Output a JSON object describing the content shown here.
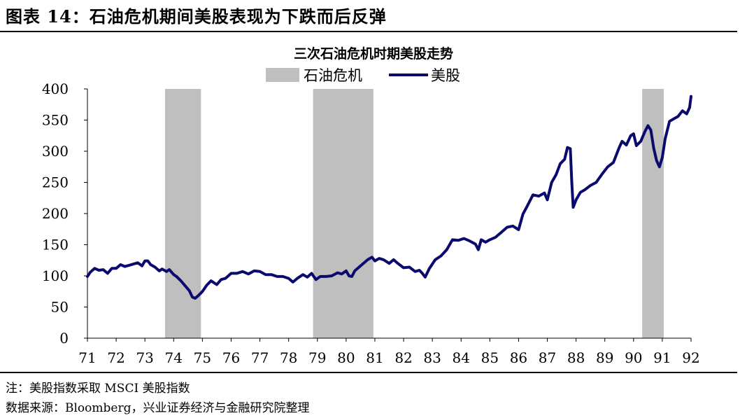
{
  "figure": {
    "title": "图表 14：石油危机期间美股表现为下跌而后反弹",
    "note": "注：美股指数采取 MSCI 美股指数",
    "source": "数据来源：Bloomberg，兴业证券经济与金融研究院整理"
  },
  "chart_data": {
    "type": "line",
    "title": "三次石油危机时期美股走势",
    "xlabel": "",
    "ylabel": "",
    "ylim": [
      0,
      400
    ],
    "yticks": [
      0,
      50,
      100,
      150,
      200,
      250,
      300,
      350,
      400
    ],
    "xlim": [
      1971,
      1992
    ],
    "xtick_labels": [
      "71",
      "72",
      "73",
      "74",
      "75",
      "76",
      "77",
      "78",
      "79",
      "80",
      "81",
      "82",
      "83",
      "84",
      "85",
      "86",
      "87",
      "88",
      "89",
      "90",
      "91",
      "92"
    ],
    "legend": {
      "position": "top",
      "band_label": "石油危机",
      "line_label": "美股"
    },
    "colors": {
      "line": "#0a0a6e",
      "band": "#bfbfbf"
    },
    "shaded_periods": [
      {
        "start": 1973.7,
        "end": 1974.95
      },
      {
        "start": 1978.85,
        "end": 1980.95
      },
      {
        "start": 1990.3,
        "end": 1991.05
      }
    ],
    "series": [
      {
        "name": "美股",
        "x": [
          1971.0,
          1971.1,
          1971.25,
          1971.4,
          1971.55,
          1971.7,
          1971.85,
          1972.0,
          1972.15,
          1972.3,
          1972.45,
          1972.6,
          1972.75,
          1972.9,
          1973.0,
          1973.1,
          1973.2,
          1973.35,
          1973.5,
          1973.6,
          1973.75,
          1973.85,
          1974.0,
          1974.1,
          1974.25,
          1974.4,
          1974.55,
          1974.65,
          1974.75,
          1974.85,
          1975.0,
          1975.15,
          1975.3,
          1975.5,
          1975.65,
          1975.8,
          1976.0,
          1976.2,
          1976.4,
          1976.6,
          1976.8,
          1977.0,
          1977.2,
          1977.4,
          1977.6,
          1977.8,
          1978.0,
          1978.15,
          1978.3,
          1978.5,
          1978.65,
          1978.8,
          1978.95,
          1979.1,
          1979.3,
          1979.5,
          1979.7,
          1979.85,
          1980.0,
          1980.1,
          1980.2,
          1980.3,
          1980.45,
          1980.6,
          1980.75,
          1980.9,
          1981.0,
          1981.15,
          1981.3,
          1981.5,
          1981.65,
          1981.8,
          1982.0,
          1982.2,
          1982.4,
          1982.55,
          1982.65,
          1982.75,
          1982.9,
          1983.1,
          1983.3,
          1983.5,
          1983.7,
          1983.9,
          1984.1,
          1984.3,
          1984.5,
          1984.6,
          1984.7,
          1984.85,
          1985.0,
          1985.2,
          1985.4,
          1985.6,
          1985.8,
          1986.0,
          1986.15,
          1986.3,
          1986.5,
          1986.7,
          1986.9,
          1987.0,
          1987.15,
          1987.3,
          1987.45,
          1987.6,
          1987.7,
          1987.8,
          1987.85,
          1987.9,
          1988.0,
          1988.15,
          1988.3,
          1988.5,
          1988.7,
          1988.9,
          1989.1,
          1989.3,
          1989.5,
          1989.6,
          1989.75,
          1989.9,
          1990.0,
          1990.1,
          1990.25,
          1990.4,
          1990.5,
          1990.6,
          1990.7,
          1990.8,
          1990.9,
          1991.0,
          1991.1,
          1991.25,
          1991.4,
          1991.55,
          1991.7,
          1991.85,
          1991.95,
          1992.0
        ],
        "values": [
          99,
          106,
          112,
          109,
          110,
          104,
          112,
          112,
          118,
          115,
          117,
          119,
          121,
          116,
          124,
          124,
          118,
          114,
          108,
          111,
          107,
          110,
          102,
          99,
          92,
          84,
          76,
          66,
          64,
          68,
          75,
          85,
          92,
          86,
          94,
          96,
          104,
          104,
          107,
          103,
          108,
          107,
          102,
          102,
          99,
          99,
          96,
          90,
          96,
          102,
          98,
          104,
          94,
          99,
          99,
          100,
          105,
          103,
          108,
          100,
          99,
          108,
          114,
          120,
          126,
          130,
          124,
          128,
          126,
          120,
          126,
          120,
          113,
          114,
          107,
          109,
          104,
          98,
          112,
          126,
          132,
          142,
          158,
          157,
          160,
          156,
          151,
          142,
          158,
          154,
          158,
          162,
          170,
          178,
          180,
          174,
          199,
          212,
          230,
          228,
          233,
          222,
          250,
          262,
          280,
          287,
          306,
          304,
          250,
          210,
          222,
          234,
          238,
          245,
          250,
          263,
          275,
          282,
          306,
          316,
          310,
          325,
          328,
          309,
          316,
          332,
          341,
          334,
          305,
          285,
          275,
          290,
          320,
          348,
          352,
          356,
          365,
          360,
          370,
          388
        ]
      }
    ]
  }
}
